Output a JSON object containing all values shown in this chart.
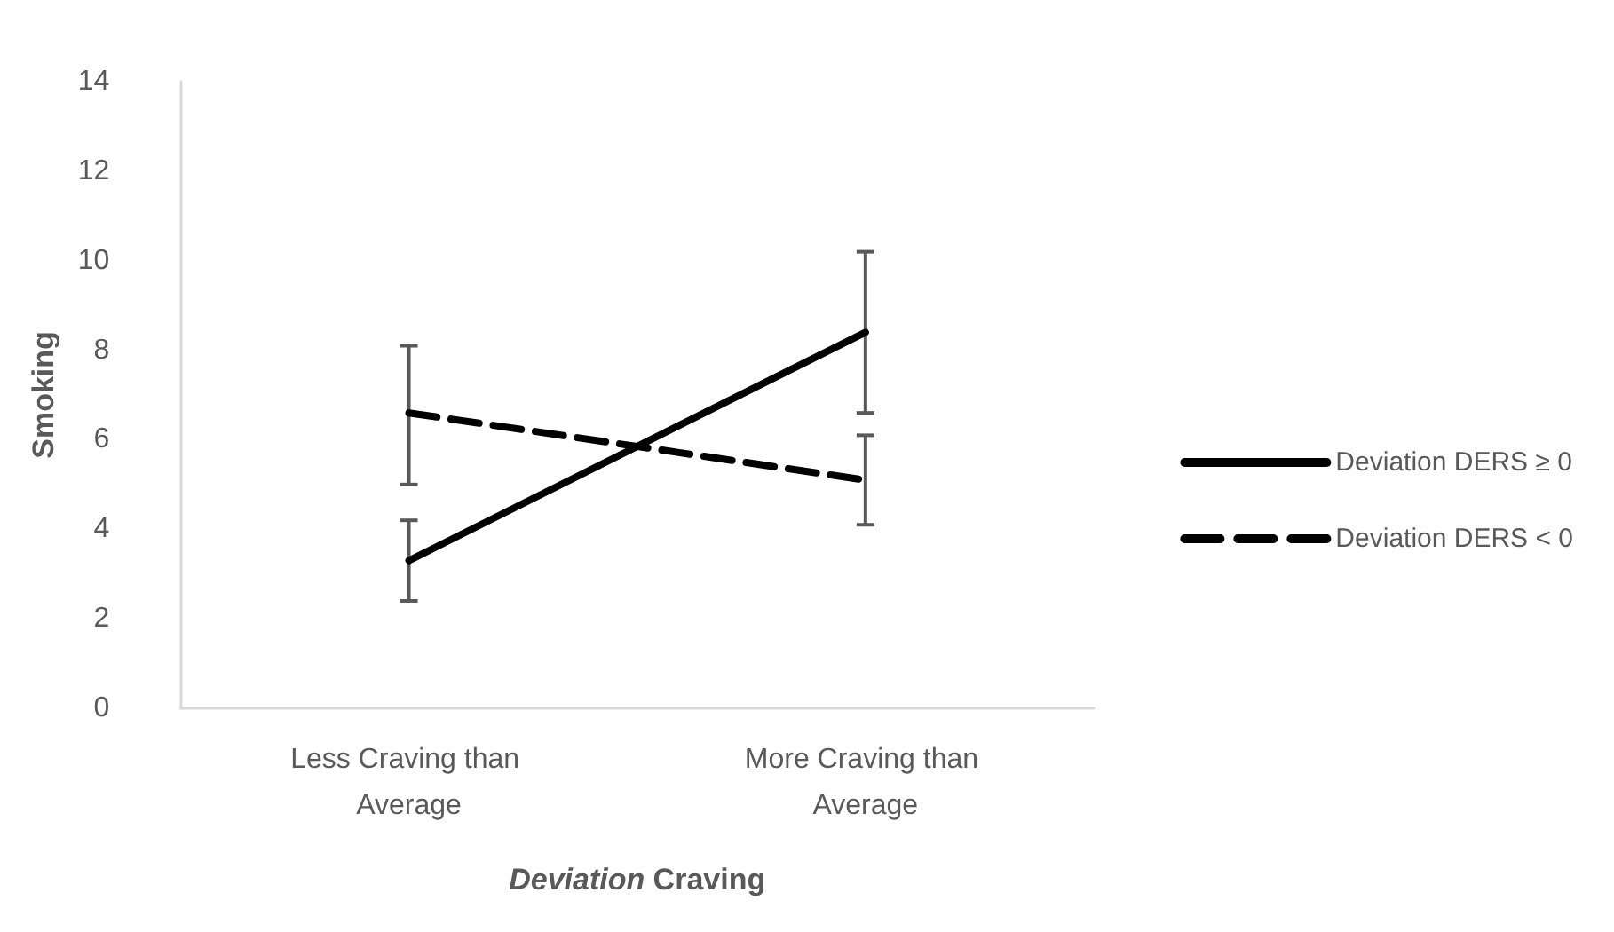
{
  "chart_data": {
    "type": "line",
    "xlabel": "Deviation Craving",
    "ylabel": "Smoking",
    "categories": [
      "Less Craving than Average",
      "More Craving than Average"
    ],
    "series": [
      {
        "name": "Deviation DERS ≥ 0",
        "color": "#000000",
        "line_style": "solid",
        "values": [
          3.3,
          8.4
        ],
        "errors": [
          [
            2.4,
            4.2
          ],
          [
            6.6,
            10.2
          ]
        ]
      },
      {
        "name": "Deviation DERS < 0",
        "color": "#000000",
        "line_style": "dashed",
        "values": [
          6.6,
          5.1
        ],
        "errors": [
          [
            5.0,
            8.1
          ],
          [
            4.1,
            6.1
          ]
        ]
      }
    ],
    "ylim": [
      0,
      14
    ],
    "yticks": [
      0,
      2,
      4,
      6,
      8,
      10,
      12,
      14
    ],
    "grid": false,
    "legend": "right",
    "marker": "none"
  }
}
